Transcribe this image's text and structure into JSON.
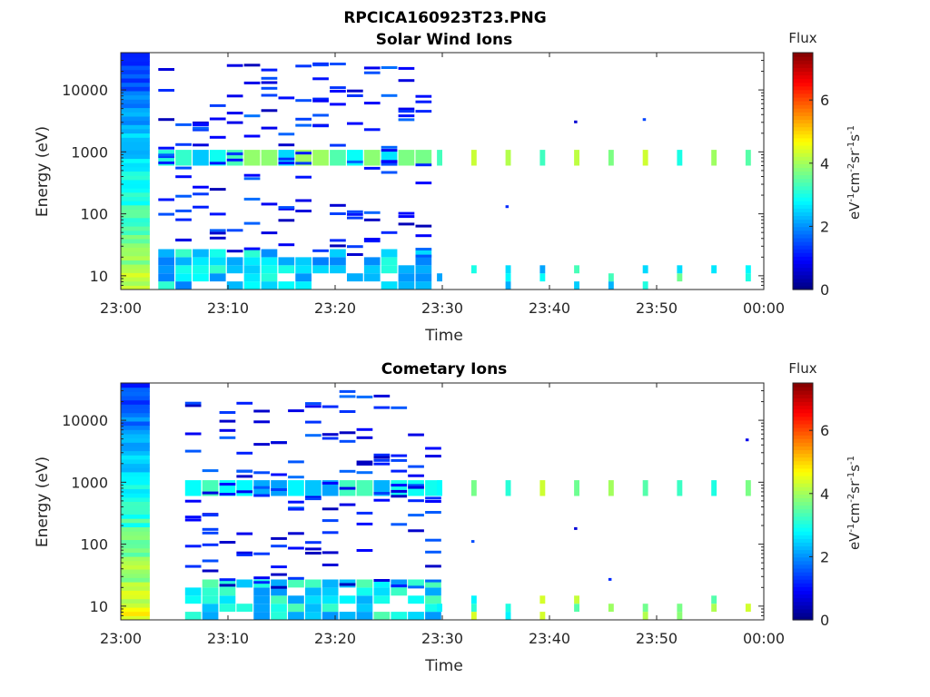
{
  "figure": {
    "title": "RPCICA160923T23.PNG"
  },
  "chart_data": [
    {
      "type": "heatmap",
      "title": "Solar Wind Ions",
      "xlabel": "Time",
      "ylabel": "Energy (eV)",
      "x_ticks": [
        "23:00",
        "23:10",
        "23:20",
        "23:30",
        "23:40",
        "23:50",
        "00:00"
      ],
      "y_ticks": [
        "10",
        "100",
        "1000",
        "10000"
      ],
      "y_scale": "log",
      "ylim": [
        6,
        40000
      ],
      "xlim": [
        "23:00",
        "00:00"
      ],
      "colorbar": {
        "label": "Flux",
        "unit": "eV-1cm-2sr-1s-1",
        "range": [
          0,
          7.5
        ],
        "ticks": [
          "0",
          "2",
          "4",
          "6"
        ],
        "colormap": "jet"
      },
      "background_band_minutes": [
        0,
        2.7
      ],
      "activity": [
        {
          "start_min": 3.5,
          "end_min": 28.5,
          "low_energy_peak": 10,
          "main_peak_ev": 800,
          "peak_flux": 4.0
        },
        {
          "start_min": 29.5,
          "end_min": 58.5,
          "low_energy_peak": 10,
          "main_peak_ev": 800,
          "peak_flux": 4.5,
          "pattern": "periodic bursts ~3 min"
        }
      ]
    },
    {
      "type": "heatmap",
      "title": "Cometary Ions",
      "xlabel": "Time",
      "ylabel": "Energy (eV)",
      "x_ticks": [
        "23:00",
        "23:10",
        "23:20",
        "23:30",
        "23:40",
        "23:50",
        "00:00"
      ],
      "y_ticks": [
        "10",
        "100",
        "1000",
        "10000"
      ],
      "y_scale": "log",
      "ylim": [
        6,
        40000
      ],
      "xlim": [
        "23:00",
        "00:00"
      ],
      "colorbar": {
        "label": "Flux",
        "unit": "eV-1cm-2sr-1s-1",
        "range": [
          0,
          7.5
        ],
        "ticks": [
          "0",
          "2",
          "4",
          "6"
        ],
        "colormap": "jet"
      },
      "background_band_minutes": [
        0,
        2.7
      ],
      "activity": [
        {
          "start_min": 6,
          "end_min": 28.5,
          "low_energy_peak": 10,
          "main_peak_ev": 800,
          "peak_flux": 3.5
        },
        {
          "start_min": 29.5,
          "end_min": 58.5,
          "low_energy_peak": 12,
          "main_peak_ev": 800,
          "peak_flux": 4.5,
          "pattern": "periodic bursts ~3 min"
        }
      ]
    }
  ]
}
